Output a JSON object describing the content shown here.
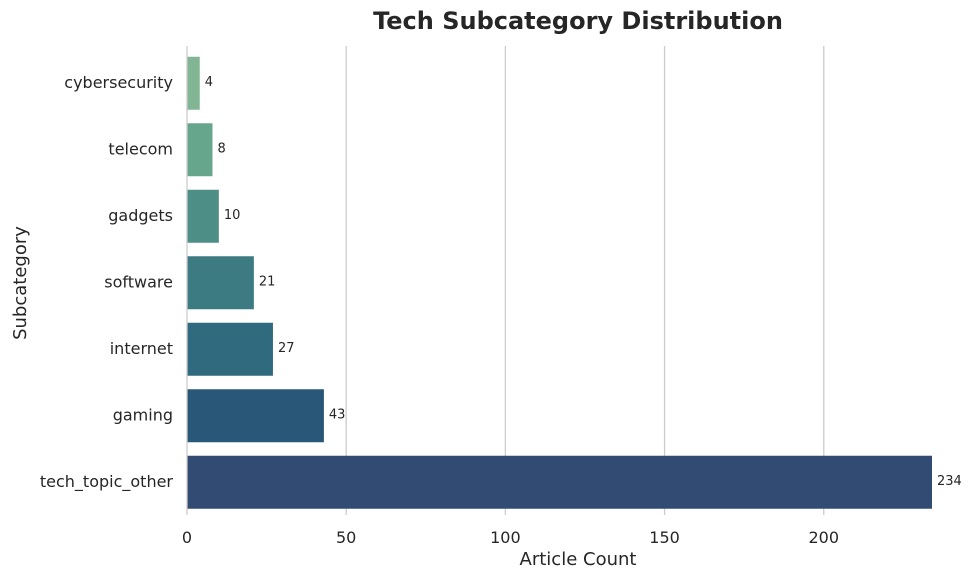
{
  "chart_data": {
    "type": "bar",
    "orientation": "horizontal",
    "title": "Tech Subcategory Distribution",
    "xlabel": "Article Count",
    "ylabel": "Subcategory",
    "categories": [
      "cybersecurity",
      "telecom",
      "gadgets",
      "software",
      "internet",
      "gaming",
      "tech_topic_other"
    ],
    "values": [
      4,
      8,
      10,
      21,
      27,
      43,
      234
    ],
    "xlim": [
      0,
      234
    ],
    "xticks": [
      0,
      50,
      100,
      150,
      200
    ],
    "grid": "x",
    "colors": [
      "#82b594",
      "#66a68d",
      "#4d8f87",
      "#3c7b82",
      "#2f6a7e",
      "#295778",
      "#324b73"
    ]
  }
}
